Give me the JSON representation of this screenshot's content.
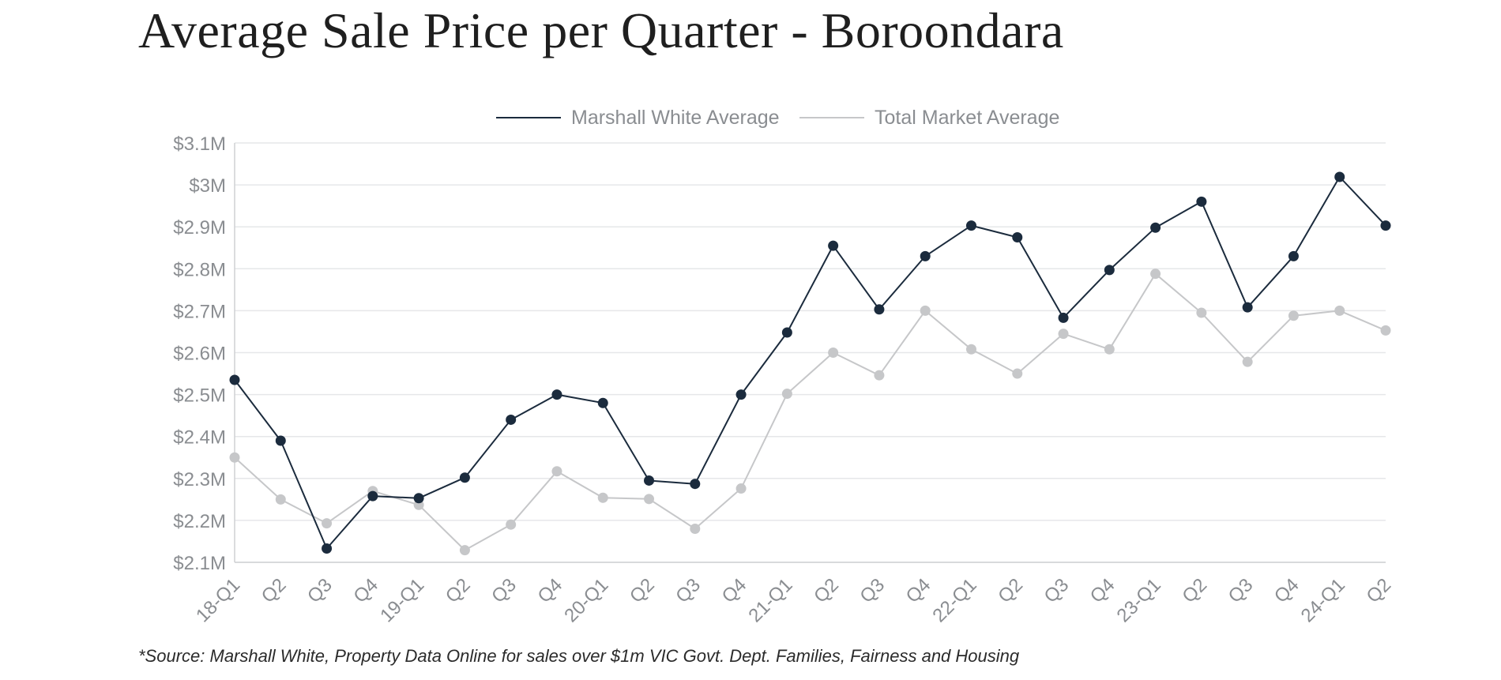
{
  "title": "Average Sale Price per Quarter - Boroondara",
  "source": "*Source: Marshall White, Property Data Online for sales over $1m VIC Govt. Dept. Families, Fairness and Housing",
  "chart_data": {
    "type": "line",
    "title": "Average Sale Price per Quarter - Boroondara",
    "xlabel": "",
    "ylabel": "",
    "ylim": [
      2.1,
      3.1
    ],
    "y_ticks": [
      2.1,
      2.2,
      2.3,
      2.4,
      2.5,
      2.6,
      2.7,
      2.8,
      2.9,
      3.0,
      3.1
    ],
    "y_tick_labels": [
      "$2.1M",
      "$2.2M",
      "$2.3M",
      "$2.4M",
      "$2.5M",
      "$2.6M",
      "$2.7M",
      "$2.8M",
      "$2.9M",
      "$3M",
      "$3.1M"
    ],
    "grid": true,
    "legend_position": "top-center",
    "categories": [
      "18-Q1",
      "Q2",
      "Q3",
      "Q4",
      "19-Q1",
      "Q2",
      "Q3",
      "Q4",
      "20-Q1",
      "Q2",
      "Q3",
      "Q4",
      "21-Q1",
      "Q2",
      "Q3",
      "Q4",
      "22-Q1",
      "Q2",
      "Q3",
      "Q4",
      "23-Q1",
      "Q2",
      "Q3",
      "Q4",
      "24-Q1",
      "Q2"
    ],
    "series": [
      {
        "name": "Marshall White Average",
        "color": "#1b2b3d",
        "values": [
          2.535,
          2.39,
          2.133,
          2.258,
          2.253,
          2.302,
          2.44,
          2.5,
          2.48,
          2.295,
          2.287,
          2.5,
          2.648,
          2.855,
          2.703,
          2.83,
          2.903,
          2.875,
          2.683,
          2.797,
          2.898,
          2.96,
          2.708,
          2.83,
          3.019,
          2.903
        ]
      },
      {
        "name": "Total Market Average",
        "color": "#c6c7c9",
        "values": [
          2.35,
          2.25,
          2.193,
          2.27,
          2.237,
          2.129,
          2.19,
          2.317,
          2.254,
          2.251,
          2.18,
          2.276,
          2.502,
          2.6,
          2.546,
          2.7,
          2.608,
          2.55,
          2.645,
          2.608,
          2.788,
          2.695,
          2.578,
          2.688,
          2.7,
          2.653
        ]
      }
    ]
  }
}
